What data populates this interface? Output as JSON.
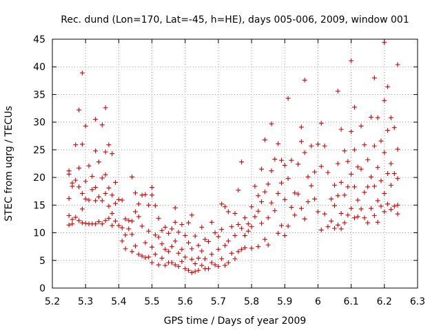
{
  "chart_data": {
    "type": "scatter",
    "title": "Rec. dund (Lon=170, Lat=-45, h=HE), days 005-006, 2009, window 001",
    "xlabel": "GPS time / Days of year 2009",
    "ylabel": "STEC from uqrg / TECUs",
    "xlim": [
      5.2,
      6.3
    ],
    "ylim": [
      0,
      45
    ],
    "x_ticks": [
      "5.2",
      "5.3",
      "5.4",
      "5.5",
      "5.6",
      "5.7",
      "5.8",
      "5.9",
      "6",
      "6.1",
      "6.2",
      "6.3"
    ],
    "y_ticks": [
      "0",
      "5",
      "10",
      "15",
      "20",
      "25",
      "30",
      "35",
      "40",
      "45"
    ],
    "grid": true,
    "marker": "+",
    "marker_color": "#cc0000",
    "series": [
      {
        "name": "STEC",
        "points": [
          [
            5.25,
            21.2
          ],
          [
            5.25,
            20.6
          ],
          [
            5.25,
            16.2
          ],
          [
            5.25,
            13.1
          ],
          [
            5.25,
            11.4
          ],
          [
            5.26,
            19.0
          ],
          [
            5.26,
            18.4
          ],
          [
            5.26,
            12.4
          ],
          [
            5.26,
            11.6
          ],
          [
            5.27,
            25.9
          ],
          [
            5.27,
            19.5
          ],
          [
            5.27,
            12.8
          ],
          [
            5.28,
            32.2
          ],
          [
            5.28,
            21.7
          ],
          [
            5.28,
            18.3
          ],
          [
            5.28,
            12.2
          ],
          [
            5.29,
            38.9
          ],
          [
            5.29,
            26.0
          ],
          [
            5.29,
            17.1
          ],
          [
            5.29,
            14.3
          ],
          [
            5.29,
            11.8
          ],
          [
            5.3,
            29.3
          ],
          [
            5.3,
            19.3
          ],
          [
            5.3,
            16.1
          ],
          [
            5.3,
            11.7
          ],
          [
            5.31,
            22.1
          ],
          [
            5.31,
            15.9
          ],
          [
            5.31,
            11.6
          ],
          [
            5.32,
            20.2
          ],
          [
            5.32,
            17.8
          ],
          [
            5.32,
            11.6
          ],
          [
            5.33,
            30.5
          ],
          [
            5.33,
            24.8
          ],
          [
            5.33,
            18.2
          ],
          [
            5.33,
            15.8
          ],
          [
            5.33,
            11.6
          ],
          [
            5.34,
            22.8
          ],
          [
            5.34,
            16.5
          ],
          [
            5.34,
            12.0
          ],
          [
            5.35,
            29.5
          ],
          [
            5.35,
            19.9
          ],
          [
            5.35,
            15.8
          ],
          [
            5.35,
            11.6
          ],
          [
            5.36,
            32.6
          ],
          [
            5.36,
            24.6
          ],
          [
            5.36,
            20.5
          ],
          [
            5.36,
            17.1
          ],
          [
            5.36,
            12.2
          ],
          [
            5.37,
            25.9
          ],
          [
            5.37,
            18.1
          ],
          [
            5.37,
            14.8
          ],
          [
            5.37,
            12.6
          ],
          [
            5.38,
            24.3
          ],
          [
            5.38,
            16.8
          ],
          [
            5.38,
            13.5
          ],
          [
            5.38,
            11.3
          ],
          [
            5.39,
            19.1
          ],
          [
            5.39,
            15.3
          ],
          [
            5.39,
            12.1
          ],
          [
            5.4,
            16.0
          ],
          [
            5.4,
            11.3
          ],
          [
            5.41,
            15.9
          ],
          [
            5.41,
            10.9
          ],
          [
            5.41,
            8.5
          ],
          [
            5.42,
            12.5
          ],
          [
            5.42,
            9.6
          ],
          [
            5.42,
            7.1
          ],
          [
            5.43,
            12.2
          ],
          [
            5.43,
            10.7
          ],
          [
            5.44,
            20.1
          ],
          [
            5.44,
            12.1
          ],
          [
            5.44,
            9.7
          ],
          [
            5.44,
            6.6
          ],
          [
            5.45,
            17.2
          ],
          [
            5.45,
            13.8
          ],
          [
            5.45,
            7.6
          ],
          [
            5.46,
            15.2
          ],
          [
            5.46,
            12.9
          ],
          [
            5.46,
            6.1
          ],
          [
            5.47,
            16.8
          ],
          [
            5.47,
            11.2
          ],
          [
            5.47,
            5.8
          ],
          [
            5.48,
            16.9
          ],
          [
            5.48,
            8.2
          ],
          [
            5.48,
            5.5
          ],
          [
            5.49,
            15.0
          ],
          [
            5.49,
            10.3
          ],
          [
            5.49,
            5.6
          ],
          [
            5.5,
            18.2
          ],
          [
            5.5,
            16.8
          ],
          [
            5.5,
            7.4
          ],
          [
            5.5,
            4.6
          ],
          [
            5.51,
            14.9
          ],
          [
            5.51,
            9.6
          ],
          [
            5.51,
            6.1
          ],
          [
            5.52,
            12.6
          ],
          [
            5.52,
            9.2
          ],
          [
            5.52,
            4.2
          ],
          [
            5.53,
            10.4
          ],
          [
            5.53,
            8.0
          ],
          [
            5.53,
            5.4
          ],
          [
            5.54,
            11.0
          ],
          [
            5.54,
            7.0
          ],
          [
            5.54,
            4.1
          ],
          [
            5.55,
            9.9
          ],
          [
            5.55,
            6.6
          ],
          [
            5.55,
            4.6
          ],
          [
            5.56,
            10.7
          ],
          [
            5.56,
            7.5
          ],
          [
            5.56,
            4.6
          ],
          [
            5.57,
            14.5
          ],
          [
            5.57,
            11.9
          ],
          [
            5.57,
            8.5
          ],
          [
            5.57,
            4.2
          ],
          [
            5.58,
            10.1
          ],
          [
            5.58,
            6.3
          ],
          [
            5.58,
            3.9
          ],
          [
            5.59,
            11.5
          ],
          [
            5.59,
            7.0
          ],
          [
            5.59,
            4.8
          ],
          [
            5.6,
            9.5
          ],
          [
            5.6,
            5.6
          ],
          [
            5.6,
            3.5
          ],
          [
            5.61,
            11.8
          ],
          [
            5.61,
            8.2
          ],
          [
            5.61,
            3.2
          ],
          [
            5.62,
            13.2
          ],
          [
            5.62,
            7.1
          ],
          [
            5.62,
            5.2
          ],
          [
            5.62,
            2.8
          ],
          [
            5.63,
            9.4
          ],
          [
            5.63,
            4.4
          ],
          [
            5.63,
            3.0
          ],
          [
            5.64,
            7.7
          ],
          [
            5.64,
            5.4
          ],
          [
            5.64,
            3.2
          ],
          [
            5.65,
            11.0
          ],
          [
            5.65,
            6.7
          ],
          [
            5.65,
            4.1
          ],
          [
            5.66,
            8.8
          ],
          [
            5.66,
            5.3
          ],
          [
            5.66,
            3.5
          ],
          [
            5.67,
            8.4
          ],
          [
            5.67,
            3.5
          ],
          [
            5.68,
            11.9
          ],
          [
            5.68,
            6.1
          ],
          [
            5.68,
            4.6
          ],
          [
            5.69,
            10.0
          ],
          [
            5.69,
            4.2
          ],
          [
            5.7,
            9.3
          ],
          [
            5.7,
            7.0
          ],
          [
            5.7,
            3.9
          ],
          [
            5.71,
            15.2
          ],
          [
            5.71,
            10.6
          ],
          [
            5.71,
            5.3
          ],
          [
            5.72,
            14.7
          ],
          [
            5.72,
            7.7
          ],
          [
            5.72,
            4.1
          ],
          [
            5.73,
            13.8
          ],
          [
            5.73,
            8.5
          ],
          [
            5.73,
            4.6
          ],
          [
            5.74,
            11.1
          ],
          [
            5.74,
            6.3
          ],
          [
            5.75,
            13.5
          ],
          [
            5.75,
            9.5
          ],
          [
            5.75,
            5.3
          ],
          [
            5.76,
            17.7
          ],
          [
            5.76,
            11.5
          ],
          [
            5.76,
            6.6
          ],
          [
            5.77,
            22.8
          ],
          [
            5.77,
            10.8
          ],
          [
            5.77,
            7.0
          ],
          [
            5.78,
            12.7
          ],
          [
            5.78,
            9.5
          ],
          [
            5.78,
            7.3
          ],
          [
            5.79,
            11.6
          ],
          [
            5.79,
            10.3
          ],
          [
            5.8,
            14.7
          ],
          [
            5.8,
            11.1
          ],
          [
            5.8,
            7.2
          ],
          [
            5.81,
            18.4
          ],
          [
            5.81,
            12.9
          ],
          [
            5.82,
            16.7
          ],
          [
            5.82,
            13.9
          ],
          [
            5.82,
            7.5
          ],
          [
            5.83,
            21.5
          ],
          [
            5.83,
            15.6
          ],
          [
            5.83,
            11.7
          ],
          [
            5.84,
            26.8
          ],
          [
            5.84,
            17.4
          ],
          [
            5.84,
            8.8
          ],
          [
            5.85,
            18.8
          ],
          [
            5.85,
            12.7
          ],
          [
            5.85,
            7.8
          ],
          [
            5.86,
            29.7
          ],
          [
            5.86,
            21.2
          ],
          [
            5.86,
            15.4
          ],
          [
            5.87,
            23.3
          ],
          [
            5.87,
            14.0
          ],
          [
            5.88,
            26.1
          ],
          [
            5.88,
            17.1
          ],
          [
            5.88,
            9.9
          ],
          [
            5.89,
            23.1
          ],
          [
            5.89,
            19.0
          ],
          [
            5.89,
            11.3
          ],
          [
            5.9,
            22.2
          ],
          [
            5.9,
            16.0
          ],
          [
            5.9,
            9.5
          ],
          [
            5.91,
            34.3
          ],
          [
            5.91,
            19.8
          ],
          [
            5.91,
            11.2
          ],
          [
            5.92,
            23.1
          ],
          [
            5.92,
            14.6
          ],
          [
            5.93,
            17.2
          ],
          [
            5.93,
            13.2
          ],
          [
            5.94,
            22.4
          ],
          [
            5.94,
            17.0
          ],
          [
            5.95,
            29.1
          ],
          [
            5.95,
            26.5
          ],
          [
            5.95,
            14.4
          ],
          [
            5.96,
            37.6
          ],
          [
            5.96,
            24.5
          ],
          [
            5.96,
            12.5
          ],
          [
            5.97,
            20.1
          ],
          [
            5.97,
            15.6
          ],
          [
            5.98,
            25.7
          ],
          [
            5.98,
            18.5
          ],
          [
            5.99,
            21.0
          ],
          [
            5.99,
            16.1
          ],
          [
            6.0,
            26.0
          ],
          [
            6.0,
            13.8
          ],
          [
            6.01,
            29.8
          ],
          [
            6.01,
            22.0
          ],
          [
            6.01,
            10.5
          ],
          [
            6.02,
            25.7
          ],
          [
            6.02,
            13.4
          ],
          [
            6.03,
            20.9
          ],
          [
            6.03,
            11.1
          ],
          [
            6.04,
            16.1
          ],
          [
            6.04,
            12.1
          ],
          [
            6.05,
            18.6
          ],
          [
            6.05,
            14.9
          ],
          [
            6.05,
            10.8
          ],
          [
            6.06,
            35.6
          ],
          [
            6.06,
            22.5
          ],
          [
            6.06,
            16.7
          ],
          [
            6.06,
            11.4
          ],
          [
            6.07,
            28.7
          ],
          [
            6.07,
            19.1
          ],
          [
            6.07,
            13.5
          ],
          [
            6.07,
            10.7
          ],
          [
            6.08,
            24.8
          ],
          [
            6.08,
            16.8
          ],
          [
            6.08,
            11.8
          ],
          [
            6.09,
            22.9
          ],
          [
            6.09,
            18.3
          ],
          [
            6.09,
            13.2
          ],
          [
            6.1,
            41.1
          ],
          [
            6.1,
            28.3
          ],
          [
            6.1,
            20.6
          ],
          [
            6.1,
            14.4
          ],
          [
            6.11,
            32.7
          ],
          [
            6.11,
            25.0
          ],
          [
            6.11,
            18.3
          ],
          [
            6.11,
            12.7
          ],
          [
            6.12,
            21.9
          ],
          [
            6.12,
            15.9
          ],
          [
            6.12,
            12.9
          ],
          [
            6.13,
            29.3
          ],
          [
            6.13,
            21.5
          ],
          [
            6.13,
            14.3
          ],
          [
            6.14,
            25.9
          ],
          [
            6.14,
            17.3
          ],
          [
            6.14,
            12.7
          ],
          [
            6.15,
            23.2
          ],
          [
            6.15,
            18.3
          ],
          [
            6.15,
            11.8
          ],
          [
            6.16,
            30.9
          ],
          [
            6.16,
            20.1
          ],
          [
            6.16,
            14.4
          ],
          [
            6.17,
            38.0
          ],
          [
            6.17,
            25.7
          ],
          [
            6.17,
            18.4
          ],
          [
            6.17,
            13.1
          ],
          [
            6.18,
            30.8
          ],
          [
            6.18,
            21.8
          ],
          [
            6.18,
            15.8
          ],
          [
            6.18,
            11.9
          ],
          [
            6.19,
            26.6
          ],
          [
            6.19,
            19.4
          ],
          [
            6.19,
            14.8
          ],
          [
            6.2,
            44.4
          ],
          [
            6.2,
            33.9
          ],
          [
            6.2,
            24.5
          ],
          [
            6.2,
            17.1
          ],
          [
            6.2,
            13.8
          ],
          [
            6.21,
            36.4
          ],
          [
            6.21,
            28.5
          ],
          [
            6.21,
            20.7
          ],
          [
            6.21,
            15.2
          ],
          [
            6.22,
            30.8
          ],
          [
            6.22,
            22.5
          ],
          [
            6.22,
            18.6
          ],
          [
            6.22,
            14.2
          ],
          [
            6.23,
            29.0
          ],
          [
            6.23,
            20.7
          ],
          [
            6.23,
            14.8
          ],
          [
            6.24,
            40.4
          ],
          [
            6.24,
            25.1
          ],
          [
            6.24,
            19.8
          ],
          [
            6.24,
            15.0
          ],
          [
            6.24,
            13.4
          ]
        ]
      }
    ]
  }
}
